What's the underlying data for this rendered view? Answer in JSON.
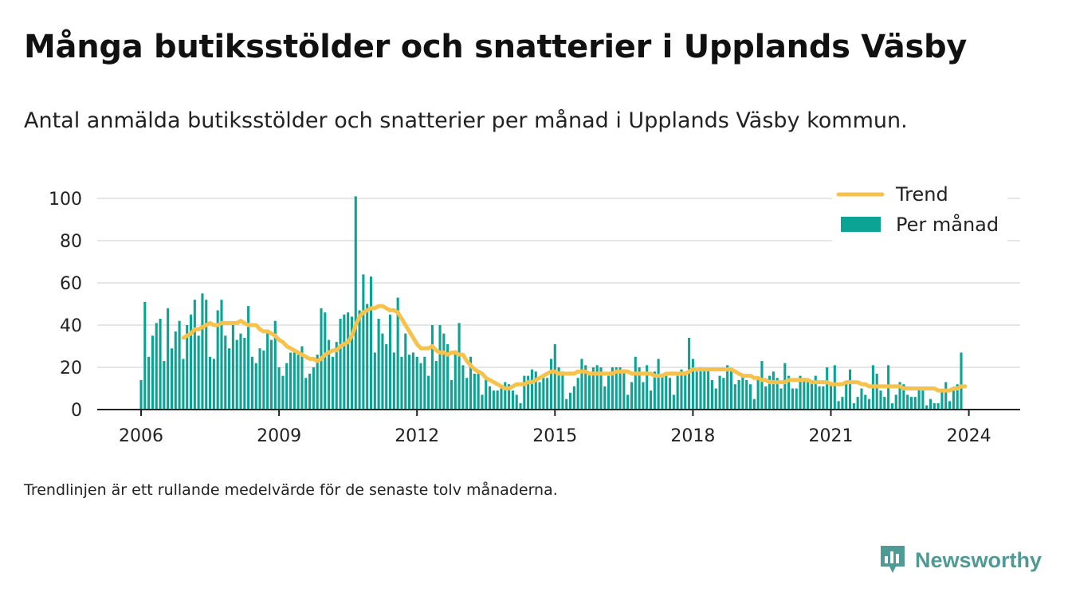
{
  "title": "Många butiksstölder och snatterier i Upplands Väsby",
  "subtitle": "Antal anmälda butiksstölder och snatterier per månad i Upplands Väsby kommun.",
  "note": "Trendlinjen är ett rullande medelvärde för de senaste tolv månaderna.",
  "brand": "Newsworthy",
  "colors": {
    "bars": "#0aa394",
    "trend": "#f6c24c",
    "grid": "#dddddd",
    "axis": "#222222",
    "brand": "#4f9a95"
  },
  "chart_data": {
    "type": "bar",
    "legend_position": "top-right",
    "legend": [
      {
        "label": "Trend",
        "kind": "line",
        "color": "#f6c24c"
      },
      {
        "label": "Per månad",
        "kind": "bar",
        "color": "#0aa394"
      }
    ],
    "ylim": [
      0,
      100
    ],
    "yticks": [
      0,
      20,
      40,
      60,
      80,
      100
    ],
    "xticks": [
      "2006",
      "2009",
      "2012",
      "2015",
      "2018",
      "2021",
      "2024"
    ],
    "grid": true,
    "x_start": "2006-01",
    "x_end": "2024-05",
    "series": [
      {
        "name": "Per månad",
        "type": "bar",
        "values": [
          14,
          51,
          25,
          35,
          41,
          43,
          23,
          48,
          29,
          37,
          42,
          24,
          40,
          45,
          52,
          35,
          55,
          52,
          25,
          24,
          47,
          52,
          35,
          29,
          40,
          33,
          36,
          34,
          49,
          25,
          22,
          29,
          28,
          37,
          33,
          42,
          20,
          16,
          22,
          27,
          27,
          26,
          30,
          15,
          17,
          20,
          26,
          48,
          46,
          33,
          25,
          32,
          43,
          45,
          46,
          44,
          101,
          47,
          64,
          50,
          63,
          27,
          43,
          36,
          31,
          45,
          27,
          53,
          25,
          36,
          26,
          27,
          25,
          22,
          25,
          16,
          40,
          23,
          40,
          36,
          31,
          14,
          28,
          41,
          21,
          15,
          25,
          17,
          17,
          7,
          15,
          11,
          9,
          9,
          10,
          13,
          12,
          9,
          7,
          3,
          16,
          16,
          19,
          18,
          13,
          15,
          15,
          24,
          31,
          20,
          18,
          5,
          8,
          11,
          15,
          24,
          21,
          17,
          20,
          21,
          20,
          11,
          16,
          20,
          20,
          20,
          19,
          7,
          13,
          25,
          20,
          13,
          21,
          9,
          18,
          24,
          17,
          16,
          15,
          7,
          16,
          19,
          18,
          34,
          24,
          18,
          20,
          19,
          19,
          14,
          10,
          16,
          15,
          21,
          19,
          12,
          14,
          16,
          14,
          12,
          5,
          15,
          23,
          11,
          16,
          18,
          15,
          10,
          22,
          16,
          10,
          10,
          16,
          15,
          13,
          13,
          16,
          11,
          11,
          20,
          13,
          21,
          4,
          6,
          12,
          19,
          3,
          6,
          10,
          7,
          5,
          21,
          17,
          9,
          6,
          21,
          3,
          7,
          13,
          12,
          7,
          6,
          6,
          10,
          9,
          2,
          5,
          3,
          3,
          9,
          13,
          4,
          9,
          12,
          27
        ]
      },
      {
        "name": "Trend",
        "type": "line",
        "values": [
          null,
          null,
          null,
          null,
          null,
          null,
          null,
          null,
          null,
          null,
          null,
          34,
          35,
          36,
          38,
          38,
          39,
          40,
          41,
          40,
          40,
          41,
          41,
          41,
          41,
          41,
          42,
          41,
          40,
          40,
          40,
          38,
          37,
          37,
          36,
          35,
          33,
          32,
          30,
          29,
          28,
          27,
          26,
          25,
          24,
          24,
          23,
          24,
          26,
          27,
          28,
          28,
          30,
          31,
          32,
          35,
          40,
          44,
          46,
          47,
          48,
          48,
          49,
          49,
          48,
          47,
          47,
          46,
          43,
          40,
          37,
          34,
          31,
          29,
          29,
          29,
          30,
          28,
          27,
          27,
          26,
          27,
          27,
          26,
          26,
          23,
          21,
          19,
          18,
          17,
          15,
          14,
          13,
          12,
          11,
          10,
          10,
          11,
          12,
          12,
          12,
          13,
          13,
          14,
          15,
          16,
          17,
          18,
          18,
          17,
          17,
          17,
          17,
          17,
          18,
          18,
          18,
          17,
          17,
          17,
          17,
          17,
          17,
          17,
          18,
          18,
          18,
          18,
          17,
          17,
          17,
          17,
          17,
          17,
          16,
          16,
          16,
          17,
          17,
          17,
          17,
          17,
          17,
          18,
          19,
          19,
          19,
          19,
          19,
          19,
          19,
          19,
          19,
          19,
          19,
          18,
          17,
          16,
          16,
          16,
          15,
          15,
          14,
          14,
          13,
          13,
          13,
          13,
          13,
          14,
          14,
          14,
          14,
          14,
          14,
          13,
          13,
          13,
          13,
          13,
          12,
          12,
          12,
          12,
          13,
          13,
          13,
          13,
          12,
          12,
          11,
          11,
          11,
          11,
          11,
          11,
          11,
          11,
          11,
          10,
          10,
          10,
          10,
          10,
          10,
          10,
          10,
          10,
          9,
          9,
          9,
          9,
          10,
          10,
          11,
          11
        ]
      }
    ]
  }
}
